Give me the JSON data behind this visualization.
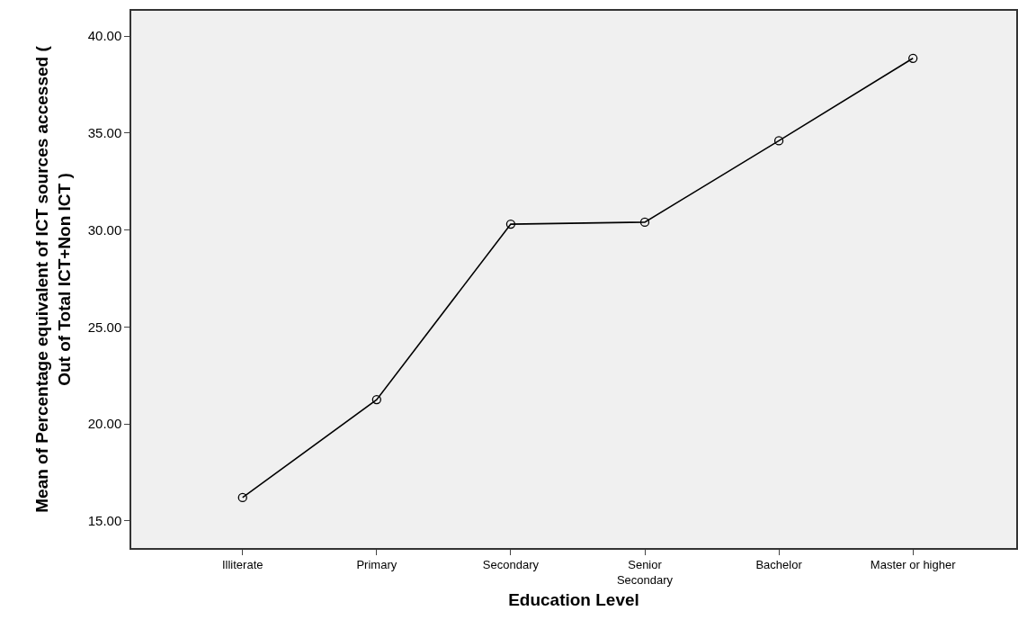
{
  "chart_data": {
    "type": "line",
    "xlabel": "Education Level",
    "ylabel": "Mean of Percentage equivalent of ICT sources accessed (\nOut of Total ICT+Non ICT )",
    "categories": [
      "Illiterate",
      "Primary",
      "Secondary",
      "Senior\nSecondary",
      "Bachelor",
      "Master or higher"
    ],
    "series": [
      {
        "color": "#000000",
        "values": [
          16.2,
          21.25,
          30.3,
          30.4,
          34.6,
          38.85
        ]
      }
    ],
    "ylim": [
      13.6,
      41.3
    ],
    "yticks": [
      {
        "value": 15,
        "label": "15.00"
      },
      {
        "value": 20,
        "label": "20.00"
      },
      {
        "value": 25,
        "label": "25.00"
      },
      {
        "value": 30,
        "label": "30.00"
      },
      {
        "value": 35,
        "label": "35.00"
      },
      {
        "value": 40,
        "label": "40.00"
      }
    ],
    "grid": false,
    "legend": false,
    "marker": "circle",
    "line_style": "solid"
  }
}
